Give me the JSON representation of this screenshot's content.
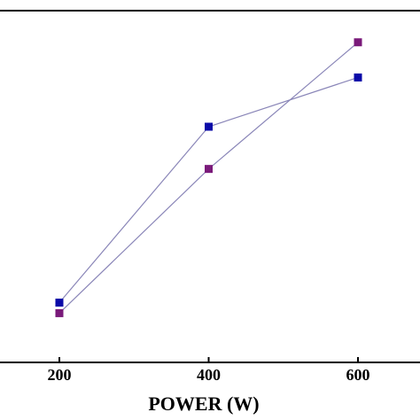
{
  "chart_data": {
    "type": "line",
    "title": "",
    "xlabel": "POWER (W)",
    "ylabel": "",
    "x": [
      200,
      400,
      600
    ],
    "x_ticks": [
      "200",
      "400",
      "600"
    ],
    "xlim": [
      200,
      600
    ],
    "ylim": [
      0,
      100
    ],
    "grid": false,
    "legend": "none",
    "series": [
      {
        "color": "#0a0aa8",
        "marker": "square",
        "values": [
          17,
          67,
          81
        ]
      },
      {
        "color": "#7a1a7a",
        "marker": "square",
        "values": [
          14,
          55,
          91
        ]
      }
    ],
    "line_color": "#8a86b8"
  }
}
